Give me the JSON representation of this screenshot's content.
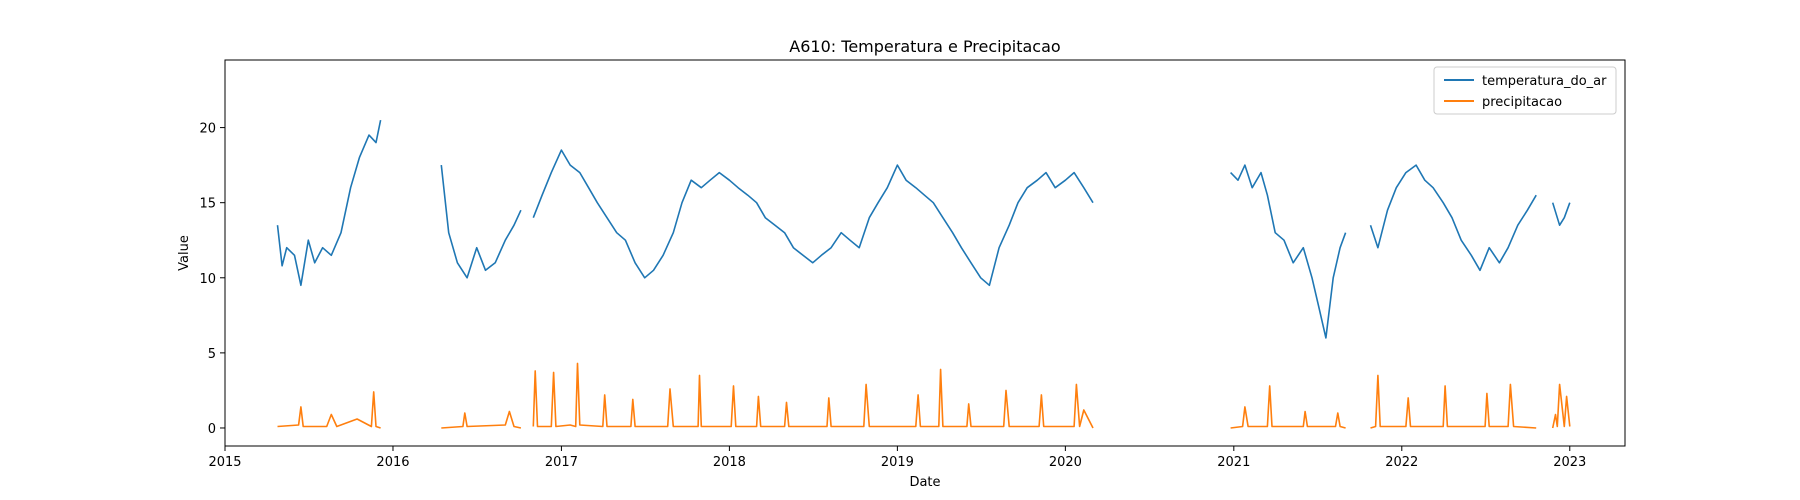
{
  "chart_data": {
    "type": "line",
    "title": "A610: Temperatura e Precipitacao",
    "xlabel": "Date",
    "ylabel": "Value",
    "xlim": [
      "2015-01-01",
      "2023-05-01"
    ],
    "ylim": [
      -1.2,
      24.5
    ],
    "x_ticks": [
      "2015-01-01",
      "2016-01-01",
      "2017-01-01",
      "2018-01-01",
      "2019-01-01",
      "2020-01-01",
      "2021-01-01",
      "2022-01-01",
      "2023-01-01"
    ],
    "x_tick_labels": [
      "2015",
      "2016",
      "2017",
      "2018",
      "2019",
      "2020",
      "2021",
      "2022",
      "2023"
    ],
    "y_ticks": [
      0,
      5,
      10,
      15,
      20
    ],
    "y_tick_labels": [
      "0",
      "5",
      "10",
      "15",
      "20"
    ],
    "grid": false,
    "legend_position": "top-right",
    "series": [
      {
        "name": "temperatura_do_ar",
        "color": "#1f77b4",
        "segments": [
          {
            "x": [
              "2015-04-25",
              "2015-05-05",
              "2015-05-15",
              "2015-06-01",
              "2015-06-15",
              "2015-07-01",
              "2015-07-15",
              "2015-08-01",
              "2015-08-20",
              "2015-09-10",
              "2015-10-01",
              "2015-10-20",
              "2015-11-10",
              "2015-11-25",
              "2015-12-05"
            ],
            "y": [
              13.5,
              10.8,
              12.0,
              11.5,
              9.5,
              12.5,
              11.0,
              12.0,
              11.5,
              13.0,
              16.0,
              18.0,
              19.5,
              19.0,
              20.5
            ]
          },
          {
            "x": [
              "2016-04-15",
              "2016-05-01",
              "2016-05-20",
              "2016-06-10",
              "2016-07-01",
              "2016-07-20",
              "2016-08-10",
              "2016-09-01",
              "2016-09-20",
              "2016-10-05"
            ],
            "y": [
              17.5,
              13.0,
              11.0,
              10.0,
              12.0,
              10.5,
              11.0,
              12.5,
              13.5,
              14.5
            ]
          },
          {
            "x": [
              "2016-11-01",
              "2016-11-20",
              "2016-12-10",
              "2017-01-01",
              "2017-01-20",
              "2017-02-10",
              "2017-03-01",
              "2017-03-20",
              "2017-04-10",
              "2017-05-01",
              "2017-05-20",
              "2017-06-10",
              "2017-07-01",
              "2017-07-20",
              "2017-08-10",
              "2017-09-01",
              "2017-09-20",
              "2017-10-10",
              "2017-11-01",
              "2017-11-20",
              "2017-12-10",
              "2018-01-01",
              "2018-01-20",
              "2018-02-10",
              "2018-03-01",
              "2018-03-20",
              "2018-04-10",
              "2018-05-01",
              "2018-05-20",
              "2018-06-10",
              "2018-07-01",
              "2018-07-20",
              "2018-08-10",
              "2018-09-01",
              "2018-09-20",
              "2018-10-10",
              "2018-11-01",
              "2018-11-20",
              "2018-12-10",
              "2019-01-01",
              "2019-01-20",
              "2019-02-10",
              "2019-03-01",
              "2019-03-20",
              "2019-04-10",
              "2019-05-01",
              "2019-05-20",
              "2019-06-10",
              "2019-07-01",
              "2019-07-20",
              "2019-08-10",
              "2019-09-01",
              "2019-09-20",
              "2019-10-10",
              "2019-11-01",
              "2019-11-20",
              "2019-12-10",
              "2020-01-01",
              "2020-01-20",
              "2020-02-10",
              "2020-03-01"
            ],
            "y": [
              14.0,
              15.5,
              17.0,
              18.5,
              17.5,
              17.0,
              16.0,
              15.0,
              14.0,
              13.0,
              12.5,
              11.0,
              10.0,
              10.5,
              11.5,
              13.0,
              15.0,
              16.5,
              16.0,
              16.5,
              17.0,
              16.5,
              16.0,
              15.5,
              15.0,
              14.0,
              13.5,
              13.0,
              12.0,
              11.5,
              11.0,
              11.5,
              12.0,
              13.0,
              12.5,
              12.0,
              14.0,
              15.0,
              16.0,
              17.5,
              16.5,
              16.0,
              15.5,
              15.0,
              14.0,
              13.0,
              12.0,
              11.0,
              10.0,
              9.5,
              12.0,
              13.5,
              15.0,
              16.0,
              16.5,
              17.0,
              16.0,
              16.5,
              17.0,
              16.0,
              15.0
            ]
          },
          {
            "x": [
              "2020-12-25",
              "2021-01-10",
              "2021-01-25",
              "2021-02-10",
              "2021-03-01",
              "2021-03-15",
              "2021-04-01",
              "2021-04-20",
              "2021-05-10",
              "2021-06-01",
              "2021-06-20",
              "2021-07-05",
              "2021-07-20",
              "2021-08-05",
              "2021-08-20",
              "2021-09-01"
            ],
            "y": [
              17.0,
              16.5,
              17.5,
              16.0,
              17.0,
              15.5,
              13.0,
              12.5,
              11.0,
              12.0,
              10.0,
              8.0,
              6.0,
              10.0,
              12.0,
              13.0
            ]
          },
          {
            "x": [
              "2021-10-25",
              "2021-11-10",
              "2021-12-01",
              "2021-12-20",
              "2022-01-10",
              "2022-02-01",
              "2022-02-20",
              "2022-03-10",
              "2022-04-01",
              "2022-04-20",
              "2022-05-10",
              "2022-06-01",
              "2022-06-20",
              "2022-07-10",
              "2022-08-01",
              "2022-08-20",
              "2022-09-10",
              "2022-10-01",
              "2022-10-20"
            ],
            "y": [
              13.5,
              12.0,
              14.5,
              16.0,
              17.0,
              17.5,
              16.5,
              16.0,
              15.0,
              14.0,
              12.5,
              11.5,
              10.5,
              12.0,
              11.0,
              12.0,
              13.5,
              14.5,
              15.5
            ]
          },
          {
            "x": [
              "2022-11-25",
              "2022-12-10",
              "2022-12-20",
              "2023-01-01"
            ],
            "y": [
              15.0,
              13.5,
              14.0,
              15.0
            ]
          }
        ]
      },
      {
        "name": "precipitacao",
        "color": "#ff7f0e",
        "segments": [
          {
            "x": [
              "2015-04-25",
              "2015-06-10",
              "2015-06-15",
              "2015-06-20",
              "2015-08-10",
              "2015-08-20",
              "2015-09-01",
              "2015-10-15",
              "2015-11-15",
              "2015-11-20",
              "2015-11-25",
              "2015-12-05"
            ],
            "y": [
              0.1,
              0.2,
              1.4,
              0.1,
              0.1,
              0.9,
              0.1,
              0.6,
              0.1,
              2.4,
              0.1,
              0.0
            ]
          },
          {
            "x": [
              "2016-04-15",
              "2016-06-01",
              "2016-06-05",
              "2016-06-10",
              "2016-09-01",
              "2016-09-10",
              "2016-09-20",
              "2016-10-05"
            ],
            "y": [
              0.0,
              0.1,
              1.0,
              0.1,
              0.2,
              1.1,
              0.1,
              0.0
            ]
          },
          {
            "x": [
              "2016-11-01",
              "2016-11-05",
              "2016-11-10",
              "2016-12-10",
              "2016-12-15",
              "2016-12-20",
              "2017-01-20",
              "2017-02-01",
              "2017-02-05",
              "2017-02-10",
              "2017-04-01",
              "2017-04-05",
              "2017-04-10",
              "2017-06-01",
              "2017-06-05",
              "2017-06-10",
              "2017-08-20",
              "2017-08-25",
              "2017-09-01",
              "2017-10-25",
              "2017-10-28",
              "2017-11-01",
              "2018-01-05",
              "2018-01-10",
              "2018-01-15",
              "2018-03-01",
              "2018-03-05",
              "2018-03-10",
              "2018-05-01",
              "2018-05-05",
              "2018-05-10",
              "2018-08-01",
              "2018-08-05",
              "2018-08-10",
              "2018-10-20",
              "2018-10-25",
              "2018-11-01",
              "2019-02-10",
              "2019-02-15",
              "2019-02-20",
              "2019-04-01",
              "2019-04-05",
              "2019-04-10",
              "2019-06-01",
              "2019-06-05",
              "2019-06-10",
              "2019-08-20",
              "2019-08-25",
              "2019-09-01",
              "2019-11-05",
              "2019-11-10",
              "2019-11-15",
              "2020-01-20",
              "2020-01-25",
              "2020-02-01",
              "2020-02-10",
              "2020-03-01"
            ],
            "y": [
              0.1,
              3.8,
              0.1,
              0.1,
              3.7,
              0.1,
              0.2,
              0.1,
              4.3,
              0.2,
              0.1,
              2.2,
              0.1,
              0.1,
              1.9,
              0.1,
              0.1,
              2.6,
              0.1,
              0.1,
              3.5,
              0.1,
              0.1,
              2.8,
              0.1,
              0.1,
              2.1,
              0.1,
              0.1,
              1.7,
              0.1,
              0.1,
              2.0,
              0.1,
              0.1,
              2.9,
              0.1,
              0.1,
              2.2,
              0.1,
              0.1,
              3.9,
              0.1,
              0.1,
              1.6,
              0.1,
              0.1,
              2.5,
              0.1,
              0.1,
              2.2,
              0.1,
              0.1,
              2.9,
              0.1,
              1.2,
              0.0
            ]
          },
          {
            "x": [
              "2020-12-25",
              "2021-01-20",
              "2021-01-25",
              "2021-02-01",
              "2021-03-15",
              "2021-03-20",
              "2021-03-25",
              "2021-06-01",
              "2021-06-05",
              "2021-06-10",
              "2021-08-10",
              "2021-08-15",
              "2021-08-20",
              "2021-09-01"
            ],
            "y": [
              0.0,
              0.1,
              1.4,
              0.1,
              0.1,
              2.8,
              0.1,
              0.1,
              1.1,
              0.1,
              0.1,
              1.0,
              0.1,
              0.0
            ]
          },
          {
            "x": [
              "2021-10-25",
              "2021-11-05",
              "2021-11-10",
              "2021-11-15",
              "2022-01-10",
              "2022-01-15",
              "2022-01-20",
              "2022-04-01",
              "2022-04-05",
              "2022-04-10",
              "2022-07-01",
              "2022-07-05",
              "2022-07-10",
              "2022-08-20",
              "2022-08-25",
              "2022-09-01",
              "2022-10-20"
            ],
            "y": [
              0.0,
              0.1,
              3.5,
              0.1,
              0.1,
              2.0,
              0.1,
              0.1,
              2.8,
              0.1,
              0.1,
              2.3,
              0.1,
              0.1,
              2.9,
              0.1,
              0.0
            ]
          },
          {
            "x": [
              "2022-11-25",
              "2022-12-01",
              "2022-12-05",
              "2022-12-10",
              "2022-12-20",
              "2022-12-25",
              "2023-01-01"
            ],
            "y": [
              0.0,
              0.9,
              0.1,
              2.9,
              0.1,
              2.1,
              0.1
            ]
          }
        ]
      }
    ]
  }
}
